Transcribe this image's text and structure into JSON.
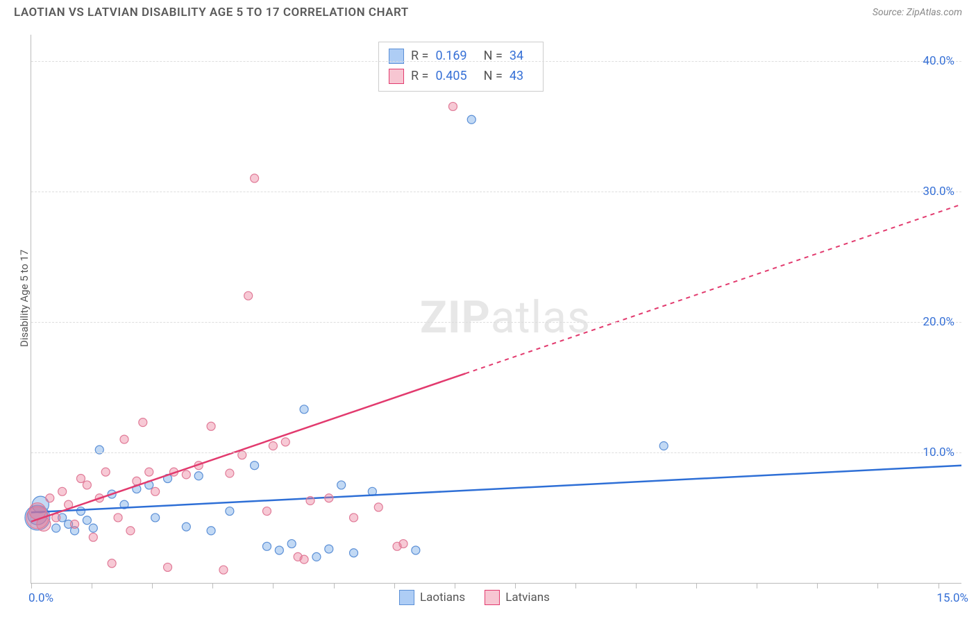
{
  "title": "LAOTIAN VS LATVIAN DISABILITY AGE 5 TO 17 CORRELATION CHART",
  "source_label": "Source: ZipAtlas.com",
  "y_axis_label": "Disability Age 5 to 17",
  "watermark_a": "ZIP",
  "watermark_b": "atlas",
  "chart": {
    "type": "scatter",
    "xlim": [
      0,
      15
    ],
    "ylim": [
      0,
      42
    ],
    "x_start_label": "0.0%",
    "x_end_label": "15.0%",
    "x_tick_positions_pct": [
      0,
      6.5,
      13,
      19.5,
      26,
      32.5,
      39,
      45.5,
      52,
      58.5,
      65,
      71.5,
      78,
      84.5,
      91,
      97.5
    ],
    "y_gridlines": [
      {
        "value": 10,
        "label": "10.0%"
      },
      {
        "value": 20,
        "label": "20.0%"
      },
      {
        "value": 30,
        "label": "30.0%"
      },
      {
        "value": 40,
        "label": "40.0%"
      }
    ],
    "background_color": "#ffffff",
    "grid_color": "#dddddd",
    "series": [
      {
        "key": "laotians",
        "label": "Laotians",
        "swatch_fill": "#aecdf5",
        "swatch_stroke": "#5b8fd6",
        "point_fill": "rgba(120,170,230,0.45)",
        "point_stroke": "#5b8fd6",
        "R": "0.169",
        "N": "34",
        "regression": {
          "x1": 0,
          "y1": 5.4,
          "x2": 15,
          "y2": 9.0,
          "solid_until_x": 15,
          "stroke": "#2e6fd6"
        },
        "points": [
          {
            "x": 0.1,
            "y": 5.0,
            "r": 18
          },
          {
            "x": 0.1,
            "y": 5.2,
            "r": 14
          },
          {
            "x": 0.15,
            "y": 6.0,
            "r": 12
          },
          {
            "x": 0.4,
            "y": 4.2,
            "r": 6
          },
          {
            "x": 0.5,
            "y": 5.0,
            "r": 6
          },
          {
            "x": 0.6,
            "y": 4.5,
            "r": 6
          },
          {
            "x": 0.7,
            "y": 4.0,
            "r": 6
          },
          {
            "x": 0.8,
            "y": 5.5,
            "r": 6
          },
          {
            "x": 0.9,
            "y": 4.8,
            "r": 6
          },
          {
            "x": 1.0,
            "y": 4.2,
            "r": 6
          },
          {
            "x": 1.1,
            "y": 10.2,
            "r": 6
          },
          {
            "x": 1.3,
            "y": 6.8,
            "r": 6
          },
          {
            "x": 1.5,
            "y": 6.0,
            "r": 6
          },
          {
            "x": 1.7,
            "y": 7.2,
            "r": 6
          },
          {
            "x": 1.9,
            "y": 7.5,
            "r": 6
          },
          {
            "x": 2.0,
            "y": 5.0,
            "r": 6
          },
          {
            "x": 2.2,
            "y": 8.0,
            "r": 6
          },
          {
            "x": 2.5,
            "y": 4.3,
            "r": 6
          },
          {
            "x": 2.7,
            "y": 8.2,
            "r": 6
          },
          {
            "x": 2.9,
            "y": 4.0,
            "r": 6
          },
          {
            "x": 3.2,
            "y": 5.5,
            "r": 6
          },
          {
            "x": 3.6,
            "y": 9.0,
            "r": 6
          },
          {
            "x": 3.8,
            "y": 2.8,
            "r": 6
          },
          {
            "x": 4.0,
            "y": 2.5,
            "r": 6
          },
          {
            "x": 4.2,
            "y": 3.0,
            "r": 6
          },
          {
            "x": 4.4,
            "y": 13.3,
            "r": 6
          },
          {
            "x": 4.6,
            "y": 2.0,
            "r": 6
          },
          {
            "x": 4.8,
            "y": 2.6,
            "r": 6
          },
          {
            "x": 5.0,
            "y": 7.5,
            "r": 6
          },
          {
            "x": 5.2,
            "y": 2.3,
            "r": 6
          },
          {
            "x": 5.5,
            "y": 7.0,
            "r": 6
          },
          {
            "x": 6.2,
            "y": 2.5,
            "r": 6
          },
          {
            "x": 7.1,
            "y": 35.5,
            "r": 6
          },
          {
            "x": 10.2,
            "y": 10.5,
            "r": 6
          }
        ]
      },
      {
        "key": "latvians",
        "label": "Latvians",
        "swatch_fill": "#f7c6d2",
        "swatch_stroke": "#e23a6e",
        "point_fill": "rgba(235,120,150,0.40)",
        "point_stroke": "#e07a97",
        "R": "0.405",
        "N": "43",
        "regression": {
          "x1": 0,
          "y1": 4.7,
          "x2": 15,
          "y2": 29.0,
          "solid_until_x": 7,
          "stroke": "#e23a6e"
        },
        "points": [
          {
            "x": 0.1,
            "y": 5.0,
            "r": 16
          },
          {
            "x": 0.1,
            "y": 5.5,
            "r": 12
          },
          {
            "x": 0.2,
            "y": 4.5,
            "r": 10
          },
          {
            "x": 0.3,
            "y": 6.5,
            "r": 6
          },
          {
            "x": 0.4,
            "y": 5.0,
            "r": 6
          },
          {
            "x": 0.5,
            "y": 7.0,
            "r": 6
          },
          {
            "x": 0.6,
            "y": 6.0,
            "r": 6
          },
          {
            "x": 0.7,
            "y": 4.5,
            "r": 6
          },
          {
            "x": 0.8,
            "y": 8.0,
            "r": 6
          },
          {
            "x": 0.9,
            "y": 7.5,
            "r": 6
          },
          {
            "x": 1.0,
            "y": 3.5,
            "r": 6
          },
          {
            "x": 1.1,
            "y": 6.5,
            "r": 6
          },
          {
            "x": 1.2,
            "y": 8.5,
            "r": 6
          },
          {
            "x": 1.3,
            "y": 1.5,
            "r": 6
          },
          {
            "x": 1.4,
            "y": 5.0,
            "r": 6
          },
          {
            "x": 1.5,
            "y": 11.0,
            "r": 6
          },
          {
            "x": 1.6,
            "y": 4.0,
            "r": 6
          },
          {
            "x": 1.7,
            "y": 7.8,
            "r": 6
          },
          {
            "x": 1.8,
            "y": 12.3,
            "r": 6
          },
          {
            "x": 1.9,
            "y": 8.5,
            "r": 6
          },
          {
            "x": 2.0,
            "y": 7.0,
            "r": 6
          },
          {
            "x": 2.2,
            "y": 1.2,
            "r": 6
          },
          {
            "x": 2.3,
            "y": 8.5,
            "r": 6
          },
          {
            "x": 2.5,
            "y": 8.3,
            "r": 6
          },
          {
            "x": 2.7,
            "y": 9.0,
            "r": 6
          },
          {
            "x": 2.9,
            "y": 12.0,
            "r": 6
          },
          {
            "x": 3.1,
            "y": 1.0,
            "r": 6
          },
          {
            "x": 3.2,
            "y": 8.4,
            "r": 6
          },
          {
            "x": 3.4,
            "y": 9.8,
            "r": 6
          },
          {
            "x": 3.5,
            "y": 22.0,
            "r": 6
          },
          {
            "x": 3.6,
            "y": 31.0,
            "r": 6
          },
          {
            "x": 3.8,
            "y": 5.5,
            "r": 6
          },
          {
            "x": 3.9,
            "y": 10.5,
            "r": 6
          },
          {
            "x": 4.1,
            "y": 10.8,
            "r": 6
          },
          {
            "x": 4.3,
            "y": 2.0,
            "r": 6
          },
          {
            "x": 4.4,
            "y": 1.8,
            "r": 6
          },
          {
            "x": 4.5,
            "y": 6.3,
            "r": 6
          },
          {
            "x": 4.8,
            "y": 6.5,
            "r": 6
          },
          {
            "x": 5.2,
            "y": 5.0,
            "r": 6
          },
          {
            "x": 5.6,
            "y": 5.8,
            "r": 6
          },
          {
            "x": 5.9,
            "y": 2.8,
            "r": 6
          },
          {
            "x": 6.0,
            "y": 3.0,
            "r": 6
          },
          {
            "x": 6.8,
            "y": 36.5,
            "r": 6
          }
        ]
      }
    ]
  },
  "legend_bottom": [
    {
      "label": "Laotians",
      "fill": "#aecdf5",
      "stroke": "#5b8fd6"
    },
    {
      "label": "Latvians",
      "fill": "#f7c6d2",
      "stroke": "#e23a6e"
    }
  ]
}
